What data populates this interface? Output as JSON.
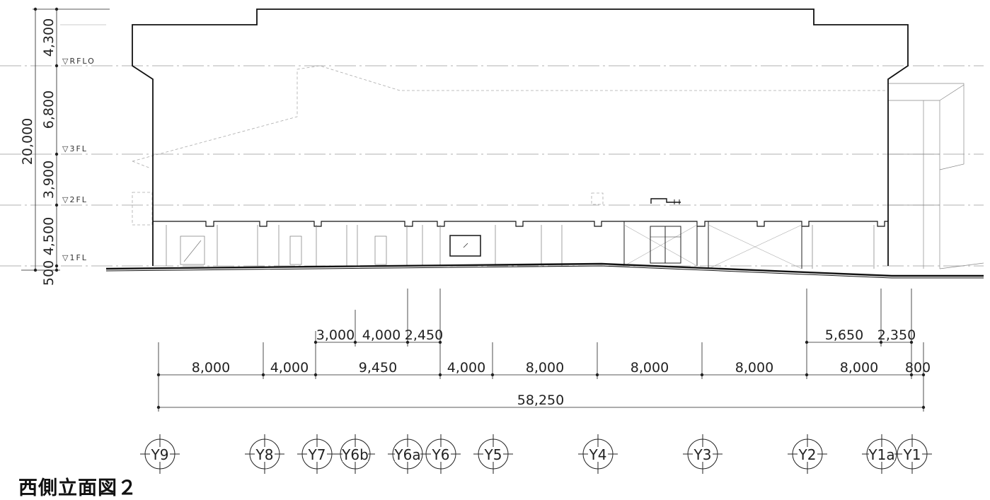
{
  "title": "西側立面図２",
  "levels": [
    {
      "label": "▽RFLO"
    },
    {
      "label": "▽3FL"
    },
    {
      "label": "▽2FL"
    },
    {
      "label": "▽1FL"
    }
  ],
  "vertical_dims": {
    "total": "20,000",
    "segments": [
      "4,300",
      "6,800",
      "3,900",
      "4,500",
      "500"
    ]
  },
  "horizontal_dims": {
    "upper_left": [
      "3,000",
      "4,000",
      "2,450"
    ],
    "upper_right": [
      "5,650",
      "2,350"
    ],
    "main": [
      "8,000",
      "4,000",
      "9,450",
      "4,000",
      "8,000",
      "8,000",
      "8,000",
      "8,000",
      "800"
    ],
    "total": "58,250"
  },
  "grid_axes": [
    "Y9",
    "Y8",
    "Y7",
    "Y6b",
    "Y6a",
    "Y6",
    "Y5",
    "Y4",
    "Y3",
    "Y2",
    "Y1a",
    "Y1"
  ]
}
